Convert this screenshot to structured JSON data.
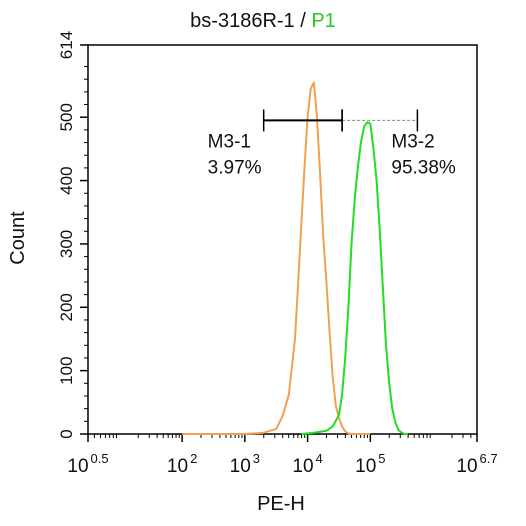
{
  "chart_data": {
    "type": "line",
    "title": {
      "prefix": "bs-3186R-1 / ",
      "highlight": "P1",
      "highlight_color": "#22cc22"
    },
    "xlabel": "PE-H",
    "ylabel": "Count",
    "x_scale": "log10",
    "xlim": [
      0.5,
      6.7
    ],
    "ylim": [
      0,
      614
    ],
    "x_ticks": [
      {
        "value": 0.5,
        "base": "10",
        "exp": "0.5"
      },
      {
        "value": 2,
        "base": "10",
        "exp": "2"
      },
      {
        "value": 3,
        "base": "10",
        "exp": "3"
      },
      {
        "value": 4,
        "base": "10",
        "exp": "4"
      },
      {
        "value": 5,
        "base": "10",
        "exp": "5"
      },
      {
        "value": 6.7,
        "base": "10",
        "exp": "6.7"
      }
    ],
    "y_ticks": [
      0,
      100,
      200,
      300,
      400,
      500,
      614
    ],
    "series": [
      {
        "color": "#f0a050",
        "x_log10": [
          2.0,
          2.5,
          3.0,
          3.3,
          3.5,
          3.6,
          3.7,
          3.8,
          3.85,
          3.9,
          3.95,
          4.0,
          4.05,
          4.1,
          4.15,
          4.2,
          4.25,
          4.3,
          4.35,
          4.4,
          4.45,
          4.5,
          4.55,
          4.6,
          4.65,
          4.7,
          4.8,
          5.0
        ],
        "y": [
          0,
          0,
          0,
          2,
          8,
          28,
          62,
          150,
          240,
          330,
          420,
          500,
          545,
          555,
          500,
          410,
          310,
          240,
          160,
          90,
          45,
          25,
          12,
          4,
          1,
          0,
          0,
          0
        ]
      },
      {
        "color": "#22dd22",
        "x_log10": [
          3.9,
          4.1,
          4.3,
          4.4,
          4.5,
          4.55,
          4.6,
          4.65,
          4.7,
          4.75,
          4.8,
          4.85,
          4.9,
          4.95,
          5.0,
          5.05,
          5.1,
          5.15,
          5.2,
          5.25,
          5.3,
          5.35,
          5.4,
          5.45,
          5.5,
          5.55,
          5.6
        ],
        "y": [
          0,
          2,
          5,
          12,
          30,
          62,
          120,
          200,
          300,
          370,
          420,
          460,
          485,
          492,
          490,
          450,
          400,
          320,
          230,
          140,
          80,
          40,
          18,
          6,
          2,
          0,
          0
        ]
      }
    ],
    "markers": [
      {
        "label": "M3-1",
        "percent": "3.97%",
        "x_log10_range": [
          3.3,
          4.55
        ],
        "y": 495
      },
      {
        "label": "M3-2",
        "percent": "95.38%",
        "x_log10_range": [
          4.55,
          5.75
        ],
        "y": 495
      }
    ]
  }
}
